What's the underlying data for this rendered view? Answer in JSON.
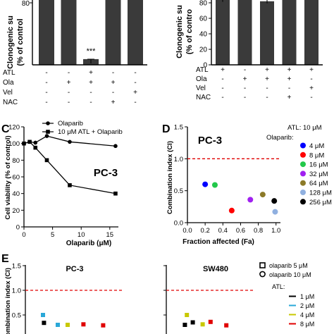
{
  "colors": {
    "bar": "#3a3a3a",
    "axis": "#000000",
    "threshold": "#e00000",
    "ci_blue": "#0000ff",
    "ci_green": "#22c84a",
    "ci_red": "#ff0000",
    "ci_purple": "#a020f0",
    "ci_olive": "#8c7a28",
    "ci_lightblue": "#90b0e0",
    "ci_black": "#000000",
    "atl_1": "#000000",
    "atl_2": "#2aa8d8",
    "atl_4": "#c8c800",
    "atl_8": "#e00000"
  },
  "panel_A": {
    "ylabel": "Clonogenic su\n(% of control",
    "tick_80": "80",
    "significance": "***",
    "rows": [
      {
        "label": "ATL",
        "values": [
          "-",
          "-",
          "+",
          "-",
          "-"
        ]
      },
      {
        "label": "Ola",
        "values": [
          "-",
          "+",
          "+",
          "+",
          "-"
        ]
      },
      {
        "label": "Vel",
        "values": [
          "-",
          "-",
          "-",
          "-",
          "+"
        ]
      },
      {
        "label": "NAC",
        "values": [
          "-",
          "-",
          "-",
          "+",
          "-"
        ]
      }
    ]
  },
  "panel_B": {
    "ylabel": "Clonogenic su\n(% of contro",
    "ticks": [
      "80",
      "60",
      "40",
      "20",
      "0"
    ],
    "rows": [
      {
        "label": "ATL",
        "values": [
          "+",
          "-",
          "+",
          "+",
          "+"
        ]
      },
      {
        "label": "Ola",
        "values": [
          "-",
          "+",
          "+",
          "+",
          "-"
        ]
      },
      {
        "label": "Vel",
        "values": [
          "-",
          "-",
          "-",
          "-",
          "+"
        ]
      },
      {
        "label": "NAC",
        "values": [
          "-",
          "-",
          "-",
          "+",
          "-"
        ]
      }
    ]
  },
  "panel_C": {
    "letter": "C",
    "title": "PC-3",
    "xlabel": "Olaparib (μM)",
    "ylabel": "Cell viability (% of control)",
    "legend": [
      "Olaparib",
      "10 μM ATL + Olaparib"
    ]
  },
  "panel_D": {
    "letter": "D",
    "title": "PC-3",
    "xlabel": "Fraction affected (Fa)",
    "ylabel": "Combination index (CI)",
    "legend_title_1": "ATL: 10 μM",
    "legend_title_2": "Olaparib:",
    "legend": [
      "4 μM",
      "8 μM",
      "16 μM",
      "32 μM",
      "64 μM",
      "128 μM",
      "256 μM"
    ]
  },
  "panel_E": {
    "letter": "E",
    "ylabel": "Combination index (CI)",
    "title_left": "PC-3",
    "title_right": "SW480",
    "legend_marker": [
      "olaparib 5 μM",
      "olaparib 10 μM"
    ],
    "legend_atl_title": "ATL:",
    "legend_atl": [
      "1 μM",
      "2 μM",
      "4 μM",
      "8 μM"
    ]
  },
  "chart_data": [
    {
      "panel": "A",
      "type": "bar",
      "categories": [
        "1",
        "2",
        "3",
        "4",
        "5"
      ],
      "values": [
        100,
        100,
        5,
        100,
        100
      ],
      "ylim": [
        0,
        100
      ]
    },
    {
      "panel": "B",
      "type": "bar",
      "categories": [
        "1",
        "2",
        "3",
        "4",
        "5"
      ],
      "values": [
        84,
        100,
        82,
        100,
        100
      ],
      "ylim": [
        0,
        100
      ]
    },
    {
      "panel": "C",
      "type": "line",
      "x": [
        0,
        1,
        2,
        4,
        8,
        16
      ],
      "series": [
        {
          "name": "Olaparib",
          "values": [
            100,
            102,
            101,
            109,
            102,
            97
          ]
        },
        {
          "name": "10 μM ATL + Olaparib",
          "values": [
            100,
            102,
            95,
            80,
            50,
            40
          ]
        }
      ],
      "xlabel": "Olaparib (μM)",
      "ylabel": "Cell viability (% of control)",
      "xlim": [
        0,
        16.5
      ],
      "ylim": [
        0,
        120
      ],
      "xticks": [
        0,
        5,
        10,
        15
      ],
      "yticks": [
        0,
        20,
        40,
        60,
        80,
        100,
        120
      ]
    },
    {
      "panel": "D",
      "type": "scatter",
      "points": [
        {
          "label": "4 μM",
          "x": 0.2,
          "y": 0.6,
          "color": "ci_blue"
        },
        {
          "label": "8 μM",
          "x": 0.5,
          "y": 0.19,
          "color": "ci_red"
        },
        {
          "label": "16 μM",
          "x": 0.31,
          "y": 0.59,
          "color": "ci_green"
        },
        {
          "label": "32 μM",
          "x": 0.71,
          "y": 0.36,
          "color": "ci_purple"
        },
        {
          "label": "64 μM",
          "x": 0.85,
          "y": 0.44,
          "color": "ci_olive"
        },
        {
          "label": "128 μM",
          "x": 0.99,
          "y": 0.17,
          "color": "ci_lightblue"
        },
        {
          "label": "256 μM",
          "x": 0.98,
          "y": 0.34,
          "color": "ci_black"
        }
      ],
      "threshold": 1.0,
      "xlabel": "Fraction affected (Fa)",
      "ylabel": "Combination index (CI)",
      "xlim": [
        0,
        1.05
      ],
      "ylim": [
        0,
        1.5
      ],
      "xticks": [
        "0.0",
        "0.2",
        "0.4",
        "0.6",
        "0.8",
        "1.0"
      ],
      "yticks": [
        "0.0",
        "0.5",
        "1.0",
        "1.5"
      ]
    },
    {
      "panel": "E",
      "type": "scatter",
      "threshold": 1.0,
      "yticks": [
        "1.5",
        "1.0",
        "0.5"
      ],
      "groups": [
        {
          "name": "PC-3",
          "points": [
            {
              "x": 0.3,
              "y": 0.34,
              "color": "atl_1"
            },
            {
              "x": 1.0,
              "y": 0.3,
              "color": "atl_2"
            },
            {
              "x": 1.5,
              "y": 0.3,
              "color": "atl_4"
            },
            {
              "x": 2.3,
              "y": 0.31,
              "color": "atl_8"
            },
            {
              "x": 3.3,
              "y": 0.29,
              "color": "atl_8"
            },
            {
              "x": 0.25,
              "y": 0.5,
              "color": "atl_2"
            }
          ]
        },
        {
          "name": "SW480",
          "points": [
            {
              "x": 0.3,
              "y": 0.3,
              "color": "atl_1"
            },
            {
              "x": 0.7,
              "y": 0.35,
              "color": "atl_1"
            },
            {
              "x": 0.4,
              "y": 0.5,
              "color": "atl_4"
            },
            {
              "x": 1.2,
              "y": 0.31,
              "color": "atl_4"
            },
            {
              "x": 1.6,
              "y": 0.36,
              "color": "atl_8"
            },
            {
              "x": 2.4,
              "y": 0.29,
              "color": "atl_8"
            }
          ]
        }
      ]
    }
  ]
}
